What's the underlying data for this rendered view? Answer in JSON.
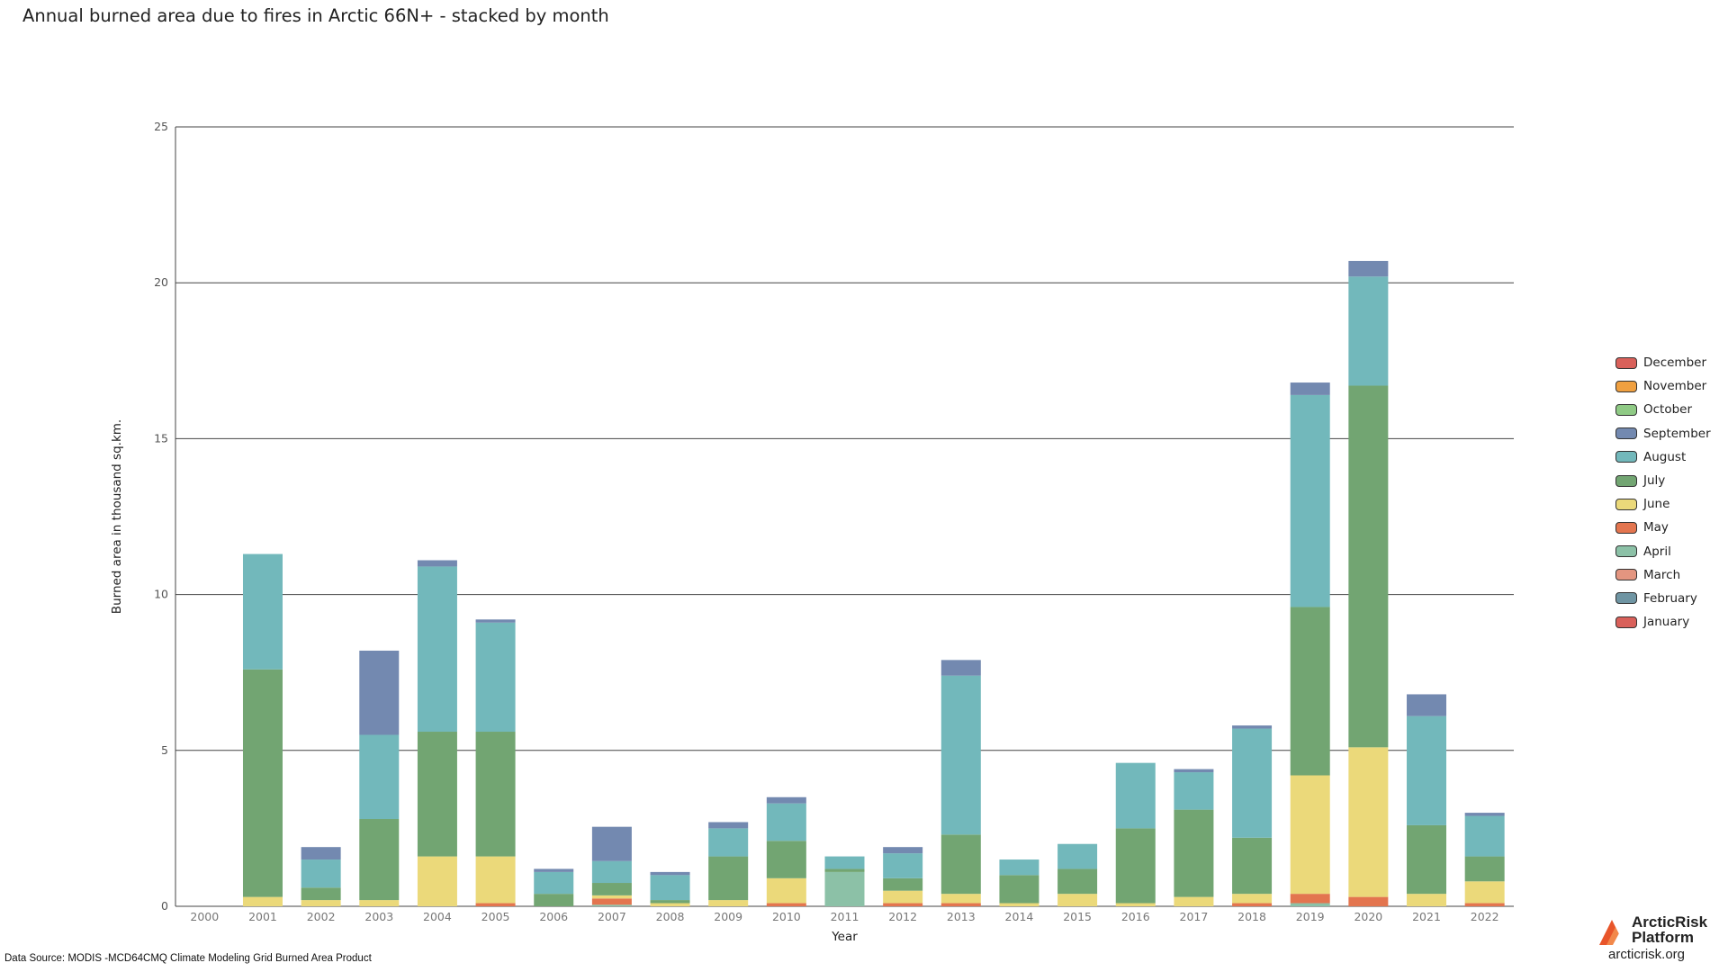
{
  "title": "Annual burned area due to fires in Arctic 66N+ - stacked by month",
  "source": "Data Source: MODIS -MCD64CMQ Climate Modeling Grid Burned Area Product",
  "logo": {
    "name_line1": "ArcticRisk",
    "name_line2": "Platform",
    "url": "arcticrisk.org"
  },
  "chart_data": {
    "type": "bar",
    "stacked": true,
    "title": "Annual burned area due to fires in Arctic 66N+ - stacked by month",
    "xlabel": "Year",
    "ylabel": "Burned area in thousand sq.km.",
    "ylim": [
      0,
      25
    ],
    "yticks": [
      0,
      5,
      10,
      15,
      20,
      25
    ],
    "grid": "horizontal",
    "legend_position": "right",
    "categories": [
      "2000",
      "2001",
      "2002",
      "2003",
      "2004",
      "2005",
      "2006",
      "2007",
      "2008",
      "2009",
      "2010",
      "2011",
      "2012",
      "2013",
      "2014",
      "2015",
      "2016",
      "2017",
      "2018",
      "2019",
      "2020",
      "2021",
      "2022"
    ],
    "series": [
      {
        "name": "January",
        "color": "#d9605a",
        "values": [
          0,
          0,
          0,
          0,
          0,
          0,
          0,
          0,
          0,
          0,
          0,
          0,
          0,
          0,
          0,
          0,
          0,
          0,
          0,
          0,
          0,
          0,
          0
        ]
      },
      {
        "name": "February",
        "color": "#6f95a3",
        "values": [
          0,
          0,
          0,
          0,
          0,
          0,
          0,
          0,
          0,
          0,
          0,
          0,
          0,
          0,
          0,
          0,
          0,
          0,
          0,
          0,
          0,
          0,
          0
        ]
      },
      {
        "name": "March",
        "color": "#e39580",
        "values": [
          0,
          0,
          0,
          0,
          0,
          0,
          0,
          0,
          0,
          0,
          0,
          0,
          0,
          0,
          0,
          0,
          0,
          0,
          0,
          0,
          0,
          0,
          0
        ]
      },
      {
        "name": "April",
        "color": "#8cc1a7",
        "values": [
          0,
          0,
          0,
          0,
          0,
          0,
          0,
          0.05,
          0,
          0,
          0,
          1.1,
          0,
          0,
          0,
          0,
          0,
          0,
          0,
          0.1,
          0,
          0,
          0
        ]
      },
      {
        "name": "May",
        "color": "#e3754f",
        "values": [
          0,
          0,
          0,
          0,
          0,
          0.1,
          0,
          0.2,
          0,
          0,
          0.1,
          0,
          0.1,
          0.1,
          0,
          0,
          0,
          0,
          0.1,
          0.3,
          0.3,
          0,
          0.1
        ]
      },
      {
        "name": "June",
        "color": "#ebd97a",
        "values": [
          0,
          0.3,
          0.2,
          0.2,
          1.6,
          1.5,
          0,
          0.1,
          0.1,
          0.2,
          0.8,
          0,
          0.4,
          0.3,
          0.1,
          0.4,
          0.1,
          0.3,
          0.3,
          3.8,
          4.8,
          0.4,
          0.7
        ]
      },
      {
        "name": "July",
        "color": "#72a572",
        "values": [
          0,
          7.3,
          0.4,
          2.6,
          4.0,
          4.0,
          0.4,
          0.4,
          0.1,
          1.4,
          1.2,
          0.1,
          0.4,
          1.9,
          0.9,
          0.8,
          2.4,
          2.8,
          1.8,
          5.4,
          11.6,
          2.2,
          0.8
        ]
      },
      {
        "name": "August",
        "color": "#72b8bb",
        "values": [
          0,
          3.7,
          0.9,
          2.7,
          5.3,
          3.5,
          0.7,
          0.7,
          0.8,
          0.9,
          1.2,
          0.4,
          0.8,
          5.1,
          0.5,
          0.8,
          2.1,
          1.2,
          3.5,
          6.8,
          3.5,
          3.5,
          1.3
        ]
      },
      {
        "name": "September",
        "color": "#7389b0",
        "values": [
          0,
          0,
          0.4,
          2.7,
          0.2,
          0.1,
          0.1,
          1.1,
          0.1,
          0.2,
          0.2,
          0,
          0.2,
          0.5,
          0,
          0,
          0,
          0.1,
          0.1,
          0.4,
          0.5,
          0.7,
          0.1
        ]
      },
      {
        "name": "October",
        "color": "#8fca85",
        "values": [
          0,
          0,
          0,
          0,
          0,
          0,
          0,
          0,
          0,
          0,
          0,
          0,
          0,
          0,
          0,
          0,
          0,
          0,
          0,
          0,
          0,
          0,
          0
        ]
      },
      {
        "name": "November",
        "color": "#f0a040",
        "values": [
          0,
          0,
          0,
          0,
          0,
          0,
          0,
          0,
          0,
          0,
          0,
          0,
          0,
          0,
          0,
          0,
          0,
          0,
          0,
          0,
          0,
          0,
          0
        ]
      },
      {
        "name": "December",
        "color": "#d9605a",
        "values": [
          0,
          0,
          0,
          0,
          0,
          0,
          0,
          0,
          0,
          0,
          0,
          0,
          0,
          0,
          0,
          0,
          0,
          0,
          0,
          0,
          0,
          0,
          0
        ]
      }
    ],
    "legend_order": [
      "December",
      "November",
      "October",
      "September",
      "August",
      "July",
      "June",
      "May",
      "April",
      "March",
      "February",
      "January"
    ]
  }
}
